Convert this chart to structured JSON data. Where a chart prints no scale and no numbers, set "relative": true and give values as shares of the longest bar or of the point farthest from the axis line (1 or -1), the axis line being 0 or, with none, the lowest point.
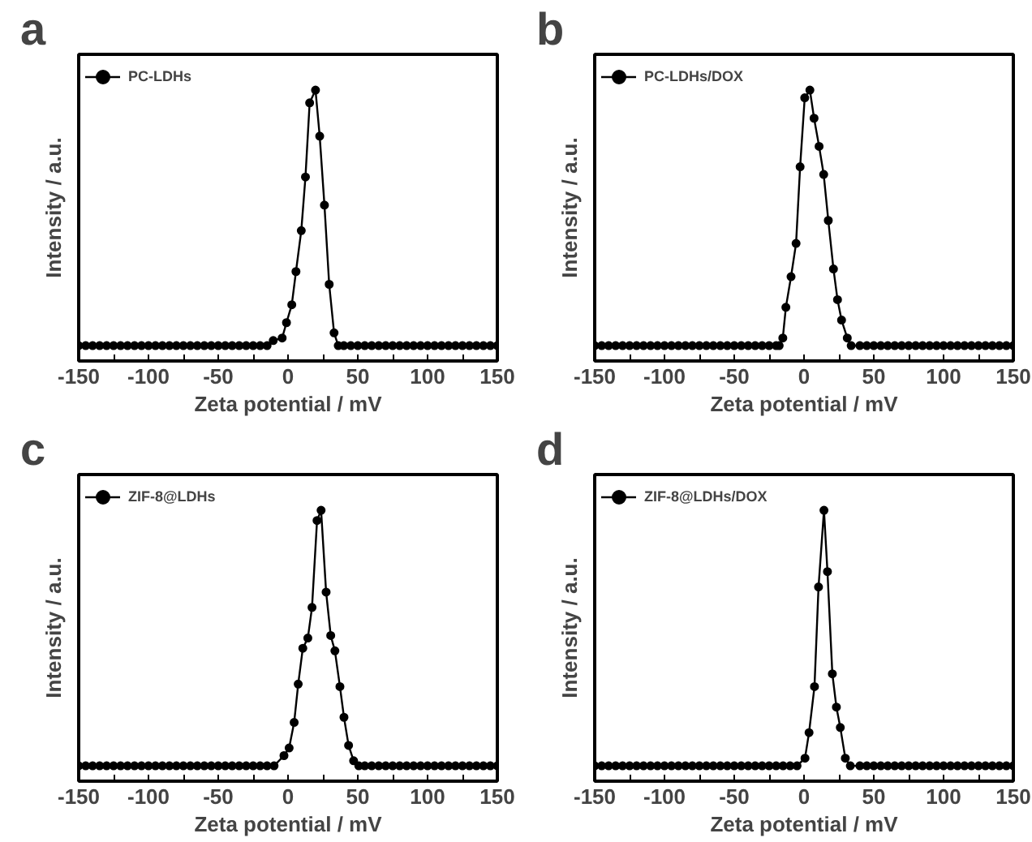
{
  "chart_data": [
    {
      "type": "line",
      "relative": true,
      "xlabel": "Zeta potential / mV",
      "ylabel": "Intensity / a.u.",
      "annotations": [
        "a"
      ],
      "legend": "top left",
      "marker": "circle",
      "tick_labels": "x",
      "xlim": [
        -150,
        150
      ],
      "xticks": [
        -150,
        {
          "value": -125,
          "label": null
        },
        -100,
        {
          "value": -75,
          "label": null
        },
        -50,
        {
          "value": -25,
          "label": null
        },
        0,
        {
          "value": 25,
          "label": null
        },
        50,
        {
          "value": 75,
          "label": null
        },
        100,
        {
          "value": 125,
          "label": null
        },
        150
      ],
      "series": [
        {
          "name": "PC-LDHs",
          "color": "#000000",
          "x": [
            -150,
            -145,
            -140,
            -135,
            -130,
            -125,
            -120,
            -115,
            -110,
            -105,
            -100,
            -95,
            -90,
            -85,
            -80,
            -75,
            -70,
            -65,
            -60,
            -55,
            -50,
            -45,
            -40,
            -35,
            -30,
            -25,
            -20,
            -15,
            -10.6,
            -4.2,
            -1.1,
            2.7,
            5.7,
            9.5,
            12.5,
            15.5,
            19.7,
            22.7,
            26.1,
            29.5,
            33,
            36,
            40,
            45,
            50,
            55,
            60,
            65,
            70,
            75,
            80,
            85,
            90,
            95,
            100,
            105,
            110,
            115,
            120,
            125,
            130,
            135,
            140,
            145,
            150
          ],
          "values": [
            0,
            0,
            0,
            0,
            0,
            0,
            0,
            0,
            0,
            0,
            0,
            0,
            0,
            0,
            0,
            0,
            0,
            0,
            0,
            0,
            0,
            0,
            0,
            0,
            0,
            0,
            0,
            0,
            0.02,
            0.03,
            0.09,
            0.16,
            0.29,
            0.45,
            0.66,
            0.95,
            1,
            0.82,
            0.55,
            0.24,
            0.05,
            0,
            0,
            0,
            0,
            0,
            0,
            0,
            0,
            0,
            0,
            0,
            0,
            0,
            0,
            0,
            0,
            0,
            0,
            0,
            0,
            0,
            0,
            0,
            0
          ]
        }
      ]
    },
    {
      "type": "line",
      "relative": true,
      "xlabel": "Zeta potential / mV",
      "ylabel": "Intensity / a.u.",
      "annotations": [
        "b"
      ],
      "legend": "top left",
      "marker": "circle",
      "tick_labels": "x",
      "xlim": [
        -150,
        150
      ],
      "xticks": [
        -150,
        {
          "value": -125,
          "label": null
        },
        -100,
        {
          "value": -75,
          "label": null
        },
        -50,
        {
          "value": -25,
          "label": null
        },
        0,
        {
          "value": 25,
          "label": null
        },
        50,
        {
          "value": 75,
          "label": null
        },
        100,
        {
          "value": 125,
          "label": null
        },
        150
      ],
      "series": [
        {
          "name": "PC-LDHs/DOX",
          "color": "#000000",
          "x": [
            -150,
            -145,
            -140,
            -135,
            -130,
            -125,
            -120,
            -115,
            -110,
            -105,
            -100,
            -95,
            -90,
            -85,
            -80,
            -75,
            -70,
            -65,
            -60,
            -55,
            -50,
            -45,
            -40,
            -35,
            -30,
            -25,
            -20,
            -17.8,
            -15.2,
            -13,
            -9.3,
            -5.7,
            -2.8,
            0.5,
            4.2,
            7.2,
            10.8,
            14.1,
            17.4,
            21.1,
            24,
            26.9,
            31,
            33.8,
            40,
            45,
            50,
            55,
            60,
            65,
            70,
            75,
            80,
            85,
            90,
            95,
            100,
            105,
            110,
            115,
            120,
            125,
            130,
            135,
            140,
            145,
            150
          ],
          "values": [
            0,
            0,
            0,
            0,
            0,
            0,
            0,
            0,
            0,
            0,
            0,
            0,
            0,
            0,
            0,
            0,
            0,
            0,
            0,
            0,
            0,
            0,
            0,
            0,
            0,
            0,
            0,
            0,
            0.03,
            0.15,
            0.27,
            0.4,
            0.7,
            0.97,
            1,
            0.89,
            0.78,
            0.67,
            0.49,
            0.3,
            0.18,
            0.1,
            0.03,
            0,
            0,
            0,
            0,
            0,
            0,
            0,
            0,
            0,
            0,
            0,
            0,
            0,
            0,
            0,
            0,
            0,
            0,
            0,
            0,
            0,
            0,
            0,
            0
          ]
        }
      ]
    },
    {
      "type": "line",
      "relative": true,
      "xlabel": "Zeta potential / mV",
      "ylabel": "Intensity / a.u.",
      "annotations": [
        "c"
      ],
      "legend": "top left",
      "marker": "circle",
      "tick_labels": "x",
      "xlim": [
        -150,
        150
      ],
      "xticks": [
        -150,
        {
          "value": -125,
          "label": null
        },
        -100,
        {
          "value": -75,
          "label": null
        },
        -50,
        {
          "value": -25,
          "label": null
        },
        0,
        {
          "value": 25,
          "label": null
        },
        50,
        {
          "value": 75,
          "label": null
        },
        100,
        {
          "value": 125,
          "label": null
        },
        150
      ],
      "series": [
        {
          "name": "ZIF-8@LDHs",
          "color": "#000000",
          "x": [
            -150,
            -145,
            -140,
            -135,
            -130,
            -125,
            -120,
            -115,
            -110,
            -105,
            -100,
            -95,
            -90,
            -85,
            -80,
            -75,
            -70,
            -65,
            -60,
            -55,
            -50,
            -45,
            -40,
            -35,
            -30,
            -25,
            -20,
            -15,
            -10,
            -2.9,
            0.8,
            4.4,
            7.3,
            10.6,
            14.2,
            17.2,
            20.8,
            23.7,
            27.3,
            30.6,
            33.6,
            37.2,
            40.1,
            43.4,
            47,
            50.7,
            55,
            60,
            65,
            70,
            75,
            80,
            85,
            90,
            95,
            100,
            105,
            110,
            115,
            120,
            125,
            130,
            135,
            140,
            145,
            150
          ],
          "values": [
            0,
            0,
            0,
            0,
            0,
            0,
            0,
            0,
            0,
            0,
            0,
            0,
            0,
            0,
            0,
            0,
            0,
            0,
            0,
            0,
            0,
            0,
            0,
            0,
            0,
            0,
            0,
            0,
            0,
            0.04,
            0.07,
            0.17,
            0.32,
            0.46,
            0.5,
            0.62,
            0.96,
            1,
            0.68,
            0.51,
            0.45,
            0.31,
            0.19,
            0.08,
            0.02,
            0,
            0,
            0,
            0,
            0,
            0,
            0,
            0,
            0,
            0,
            0,
            0,
            0,
            0,
            0,
            0,
            0,
            0,
            0,
            0,
            0
          ]
        }
      ]
    },
    {
      "type": "line",
      "relative": true,
      "xlabel": "Zeta potential / mV",
      "ylabel": "Intensity / a.u.",
      "annotations": [
        "d"
      ],
      "legend": "top left",
      "marker": "circle",
      "tick_labels": "x",
      "xlim": [
        -150,
        150
      ],
      "xticks": [
        -150,
        {
          "value": -125,
          "label": null
        },
        -100,
        {
          "value": -75,
          "label": null
        },
        -50,
        {
          "value": -25,
          "label": null
        },
        0,
        {
          "value": 25,
          "label": null
        },
        50,
        {
          "value": 75,
          "label": null
        },
        100,
        {
          "value": 125,
          "label": null
        },
        150
      ],
      "series": [
        {
          "name": "ZIF-8@LDHs/DOX",
          "color": "#000000",
          "x": [
            -150,
            -145,
            -140,
            -135,
            -130,
            -125,
            -120,
            -115,
            -110,
            -105,
            -100,
            -95,
            -90,
            -85,
            -80,
            -75,
            -70,
            -65,
            -60,
            -55,
            -50,
            -45,
            -40,
            -35,
            -30,
            -25,
            -20,
            -15,
            -10,
            -5,
            0.7,
            3.6,
            7.5,
            10.4,
            14.3,
            16.8,
            20.3,
            23.2,
            26,
            29.6,
            33.2,
            40,
            45,
            50,
            55,
            60,
            65,
            70,
            75,
            80,
            85,
            90,
            95,
            100,
            105,
            110,
            115,
            120,
            125,
            130,
            135,
            140,
            145,
            150
          ],
          "values": [
            0,
            0,
            0,
            0,
            0,
            0,
            0,
            0,
            0,
            0,
            0,
            0,
            0,
            0,
            0,
            0,
            0,
            0,
            0,
            0,
            0,
            0,
            0,
            0,
            0,
            0,
            0,
            0,
            0,
            0,
            0.03,
            0.13,
            0.31,
            0.7,
            1,
            0.76,
            0.36,
            0.23,
            0.15,
            0.03,
            0,
            0,
            0,
            0,
            0,
            0,
            0,
            0,
            0,
            0,
            0,
            0,
            0,
            0,
            0,
            0,
            0,
            0,
            0,
            0,
            0,
            0,
            0,
            0
          ]
        }
      ]
    }
  ]
}
